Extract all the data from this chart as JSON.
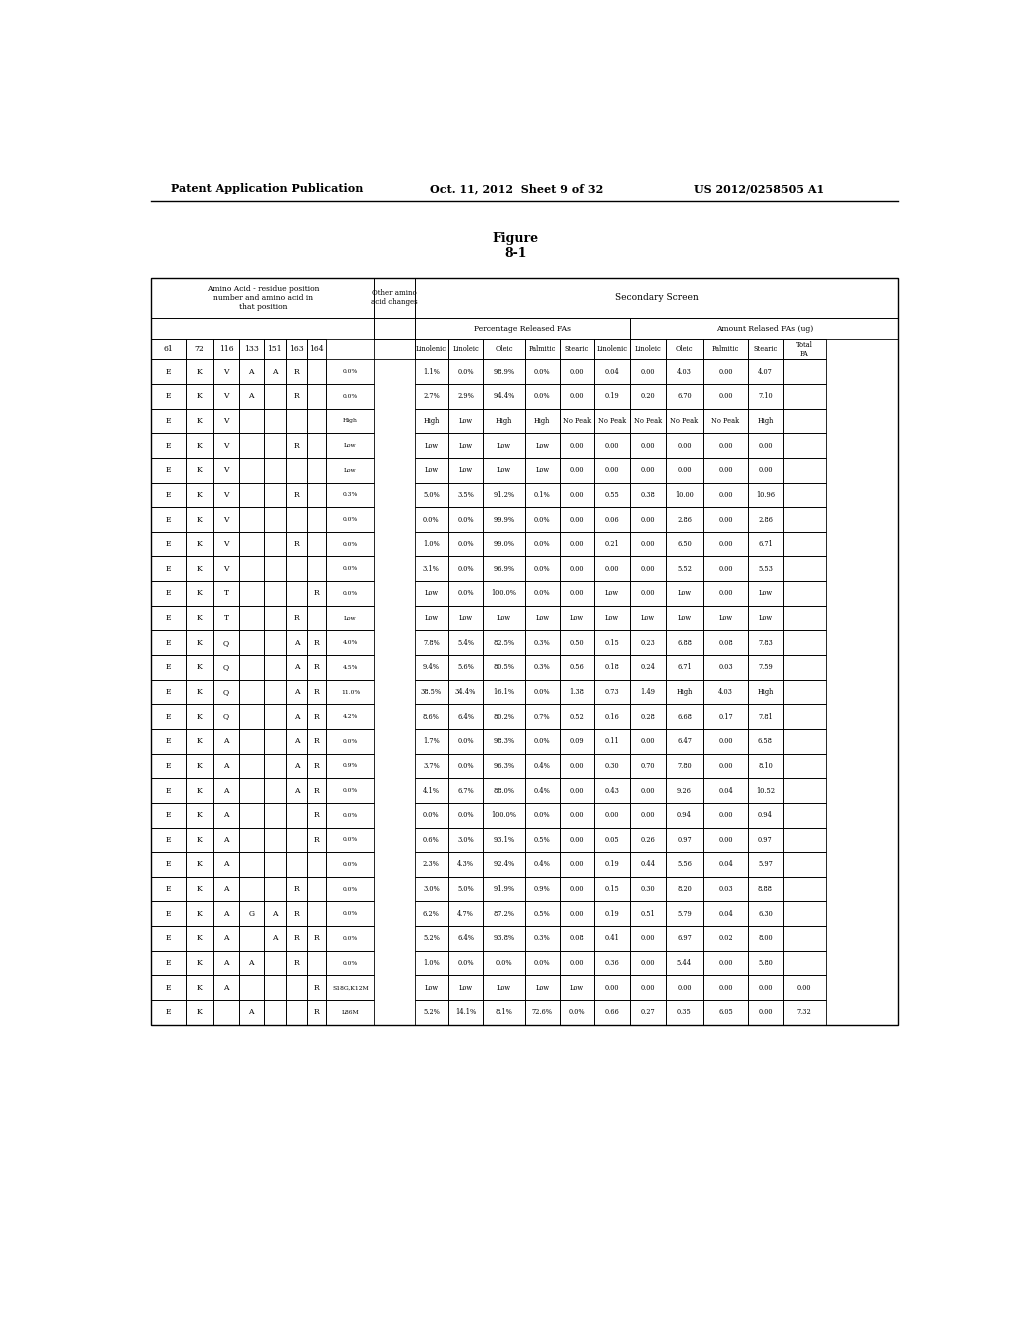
{
  "header_left": "Patent Application Publication",
  "header_center": "Oct. 11, 2012  Sheet 9 of 32",
  "header_right": "US 2012/0258505 A1",
  "figure_label": "Figure\n8-1",
  "amino_acid_cols": [
    "61",
    "72",
    "116",
    "133",
    "151",
    "163",
    "164"
  ],
  "pct_headers": [
    "Linolenic",
    "Linoleic",
    "Oleic",
    "Palmitic",
    "Stearic",
    "Linolenic"
  ],
  "amt_headers": [
    "Linoleic",
    "Oleic",
    "Palmitic",
    "Stearic",
    "Total\nFA"
  ],
  "rows": [
    [
      "E",
      "K",
      "V",
      "A",
      "A",
      "R",
      "",
      "0.0%",
      "1.1%",
      "0.0%",
      "98.9%",
      "0.0%",
      "0.00",
      "0.04",
      "0.00",
      "4.03",
      "0.00",
      "4.07"
    ],
    [
      "E",
      "K",
      "V",
      "A",
      "",
      "R",
      "",
      "0.0%",
      "2.7%",
      "2.9%",
      "94.4%",
      "0.0%",
      "0.00",
      "0.19",
      "0.20",
      "6.70",
      "0.00",
      "7.10"
    ],
    [
      "E",
      "K",
      "V",
      "",
      "",
      "",
      "",
      "High",
      "High",
      "Low",
      "High",
      "High",
      "No Peak",
      "No Peak",
      "No Peak",
      "No Peak",
      "No Peak",
      "High"
    ],
    [
      "E",
      "K",
      "V",
      "",
      "",
      "R",
      "",
      "Low",
      "Low",
      "Low",
      "Low",
      "Low",
      "0.00",
      "0.00",
      "0.00",
      "0.00",
      "0.00",
      "0.00"
    ],
    [
      "E",
      "K",
      "V",
      "",
      "",
      "",
      "",
      "Low",
      "Low",
      "Low",
      "Low",
      "Low",
      "0.00",
      "0.00",
      "0.00",
      "0.00",
      "0.00",
      "0.00"
    ],
    [
      "E",
      "K",
      "V",
      "",
      "",
      "R",
      "",
      "0.3%",
      "5.0%",
      "3.5%",
      "91.2%",
      "0.1%",
      "0.00",
      "0.55",
      "0.38",
      "10.00",
      "0.00",
      "10.96"
    ],
    [
      "E",
      "K",
      "V",
      "",
      "",
      "",
      "",
      "0.0%",
      "0.0%",
      "0.0%",
      "99.9%",
      "0.0%",
      "0.00",
      "0.06",
      "0.00",
      "2.86",
      "0.00",
      "2.86"
    ],
    [
      "E",
      "K",
      "V",
      "",
      "",
      "R",
      "",
      "0.0%",
      "1.0%",
      "0.0%",
      "99.0%",
      "0.0%",
      "0.00",
      "0.21",
      "0.00",
      "6.50",
      "0.00",
      "6.71"
    ],
    [
      "E",
      "K",
      "V",
      "",
      "",
      "",
      "",
      "0.0%",
      "3.1%",
      "0.0%",
      "96.9%",
      "0.0%",
      "0.00",
      "0.00",
      "0.00",
      "5.52",
      "0.00",
      "5.53"
    ],
    [
      "E",
      "K",
      "T",
      "",
      "",
      "",
      "R",
      "0.0%",
      "Low",
      "0.0%",
      "100.0%",
      "0.0%",
      "0.00",
      "Low",
      "0.00",
      "Low",
      "0.00",
      "Low"
    ],
    [
      "E",
      "K",
      "T",
      "",
      "",
      "R",
      "",
      "Low",
      "Low",
      "Low",
      "Low",
      "Low",
      "Low",
      "Low",
      "Low",
      "Low",
      "Low",
      "Low"
    ],
    [
      "E",
      "K",
      "Q",
      "",
      "",
      "A",
      "R",
      "4.0%",
      "7.8%",
      "5.4%",
      "82.5%",
      "0.3%",
      "0.50",
      "0.15",
      "0.23",
      "6.88",
      "0.08",
      "7.83"
    ],
    [
      "E",
      "K",
      "Q",
      "",
      "",
      "A",
      "R",
      "4.5%",
      "9.4%",
      "5.6%",
      "80.5%",
      "0.3%",
      "0.56",
      "0.18",
      "0.24",
      "6.71",
      "0.03",
      "7.59"
    ],
    [
      "E",
      "K",
      "Q",
      "",
      "",
      "A",
      "R",
      "11.0%",
      "38.5%",
      "34.4%",
      "16.1%",
      "0.0%",
      "1.38",
      "0.73",
      "1.49",
      "High",
      "4.03",
      "High"
    ],
    [
      "E",
      "K",
      "Q",
      "",
      "",
      "A",
      "R",
      "4.2%",
      "8.6%",
      "6.4%",
      "80.2%",
      "0.7%",
      "0.52",
      "0.16",
      "0.28",
      "6.68",
      "0.17",
      "7.81"
    ],
    [
      "E",
      "K",
      "A",
      "",
      "",
      "A",
      "R",
      "0.0%",
      "1.7%",
      "0.0%",
      "98.3%",
      "0.0%",
      "0.09",
      "0.11",
      "0.00",
      "6.47",
      "0.00",
      "6.58"
    ],
    [
      "E",
      "K",
      "A",
      "",
      "",
      "A",
      "R",
      "0.9%",
      "3.7%",
      "0.0%",
      "96.3%",
      "0.4%",
      "0.00",
      "0.30",
      "0.70",
      "7.80",
      "0.00",
      "8.10"
    ],
    [
      "E",
      "K",
      "A",
      "",
      "",
      "A",
      "R",
      "0.0%",
      "4.1%",
      "6.7%",
      "88.0%",
      "0.4%",
      "0.00",
      "0.43",
      "0.00",
      "9.26",
      "0.04",
      "10.52"
    ],
    [
      "E",
      "K",
      "A",
      "",
      "",
      "",
      "R",
      "0.0%",
      "0.0%",
      "0.0%",
      "100.0%",
      "0.0%",
      "0.00",
      "0.00",
      "0.00",
      "0.94",
      "0.00",
      "0.94"
    ],
    [
      "E",
      "K",
      "A",
      "",
      "",
      "",
      "R",
      "0.0%",
      "0.6%",
      "3.0%",
      "93.1%",
      "0.5%",
      "0.00",
      "0.05",
      "0.26",
      "0.97",
      "0.00",
      "0.97"
    ],
    [
      "E",
      "K",
      "A",
      "",
      "",
      "",
      "",
      "0.0%",
      "2.3%",
      "4.3%",
      "92.4%",
      "0.4%",
      "0.00",
      "0.19",
      "0.44",
      "5.56",
      "0.04",
      "5.97"
    ],
    [
      "E",
      "K",
      "A",
      "",
      "",
      "R",
      "",
      "0.0%",
      "3.0%",
      "5.0%",
      "91.9%",
      "0.9%",
      "0.00",
      "0.15",
      "0.30",
      "8.20",
      "0.03",
      "8.88"
    ],
    [
      "E",
      "K",
      "A",
      "G",
      "A",
      "R",
      "",
      "0.0%",
      "6.2%",
      "4.7%",
      "87.2%",
      "0.5%",
      "0.00",
      "0.19",
      "0.51",
      "5.79",
      "0.04",
      "6.30"
    ],
    [
      "E",
      "K",
      "A",
      "",
      "A",
      "R",
      "R",
      "0.0%",
      "5.2%",
      "6.4%",
      "93.8%",
      "0.3%",
      "0.08",
      "0.41",
      "0.00",
      "6.97",
      "0.02",
      "8.00"
    ],
    [
      "E",
      "K",
      "A",
      "A",
      "",
      "R",
      "",
      "0.0%",
      "1.0%",
      "0.0%",
      "0.0%",
      "0.0%",
      "0.00",
      "0.36",
      "0.00",
      "5.44",
      "0.00",
      "5.80"
    ],
    [
      "E",
      "K",
      "A",
      "",
      "",
      "",
      "R",
      "S18G,K12M",
      "Low",
      "Low",
      "Low",
      "Low",
      "Low",
      "0.00",
      "0.00",
      "0.00",
      "0.00",
      "0.00",
      "0.00"
    ],
    [
      "E",
      "K",
      "",
      "A",
      "",
      "",
      "R",
      "L86M",
      "5.2%",
      "14.1%",
      "8.1%",
      "72.6%",
      "0.0%",
      "0.66",
      "0.27",
      "0.35",
      "6.05",
      "0.00",
      "7.32"
    ]
  ]
}
